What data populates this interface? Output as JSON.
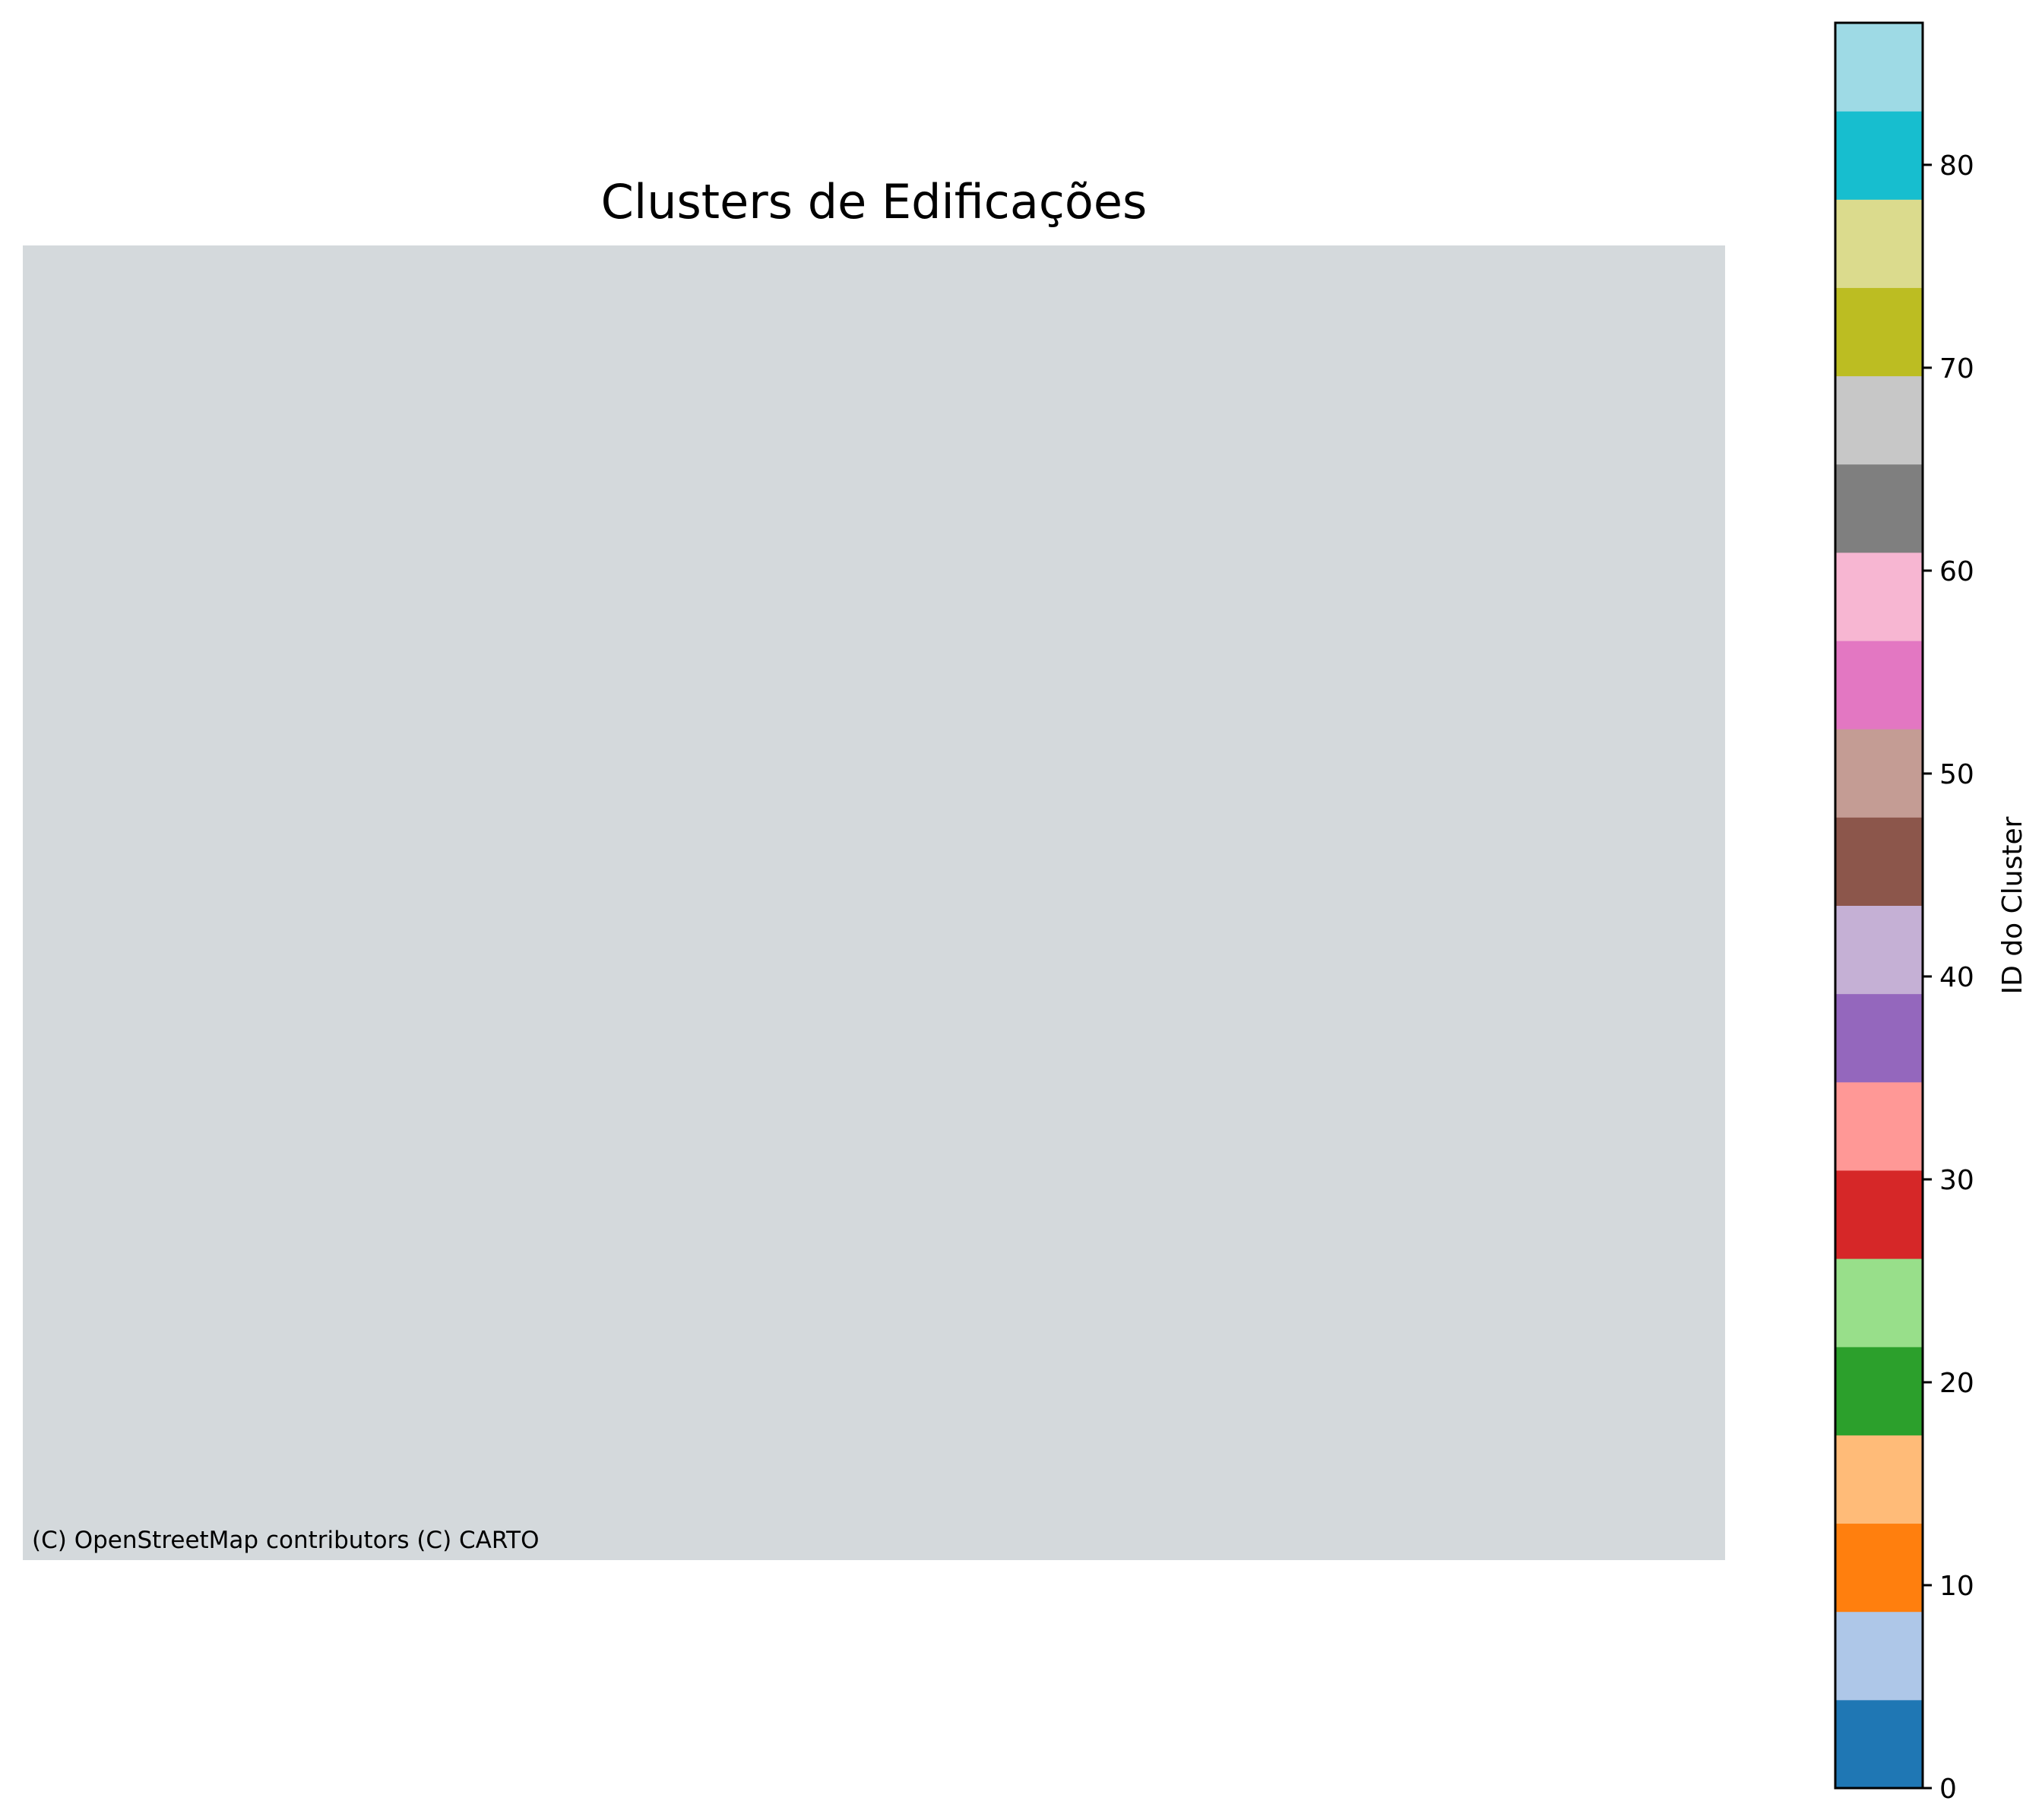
{
  "map": {
    "title": "Clusters de Edificações",
    "attribution": "(C) OpenStreetMap contributors (C) CARTO",
    "background_color": "#d4d9dc"
  },
  "colorbar": {
    "label": "ID do Cluster",
    "range": [
      0,
      87
    ],
    "ticks": [
      0,
      10,
      20,
      30,
      40,
      50,
      60,
      70,
      80
    ],
    "colors": [
      "#1f77b4",
      "#aec7e8",
      "#ff7f0e",
      "#ffbb78",
      "#2ca02c",
      "#98df8a",
      "#d62728",
      "#ff9896",
      "#9467bd",
      "#c5b0d5",
      "#8c564b",
      "#c49c94",
      "#e377c2",
      "#f7b6d2",
      "#7f7f7f",
      "#c7c7c7",
      "#bcbd22",
      "#dbdb8d",
      "#17becf",
      "#9edae5"
    ]
  }
}
